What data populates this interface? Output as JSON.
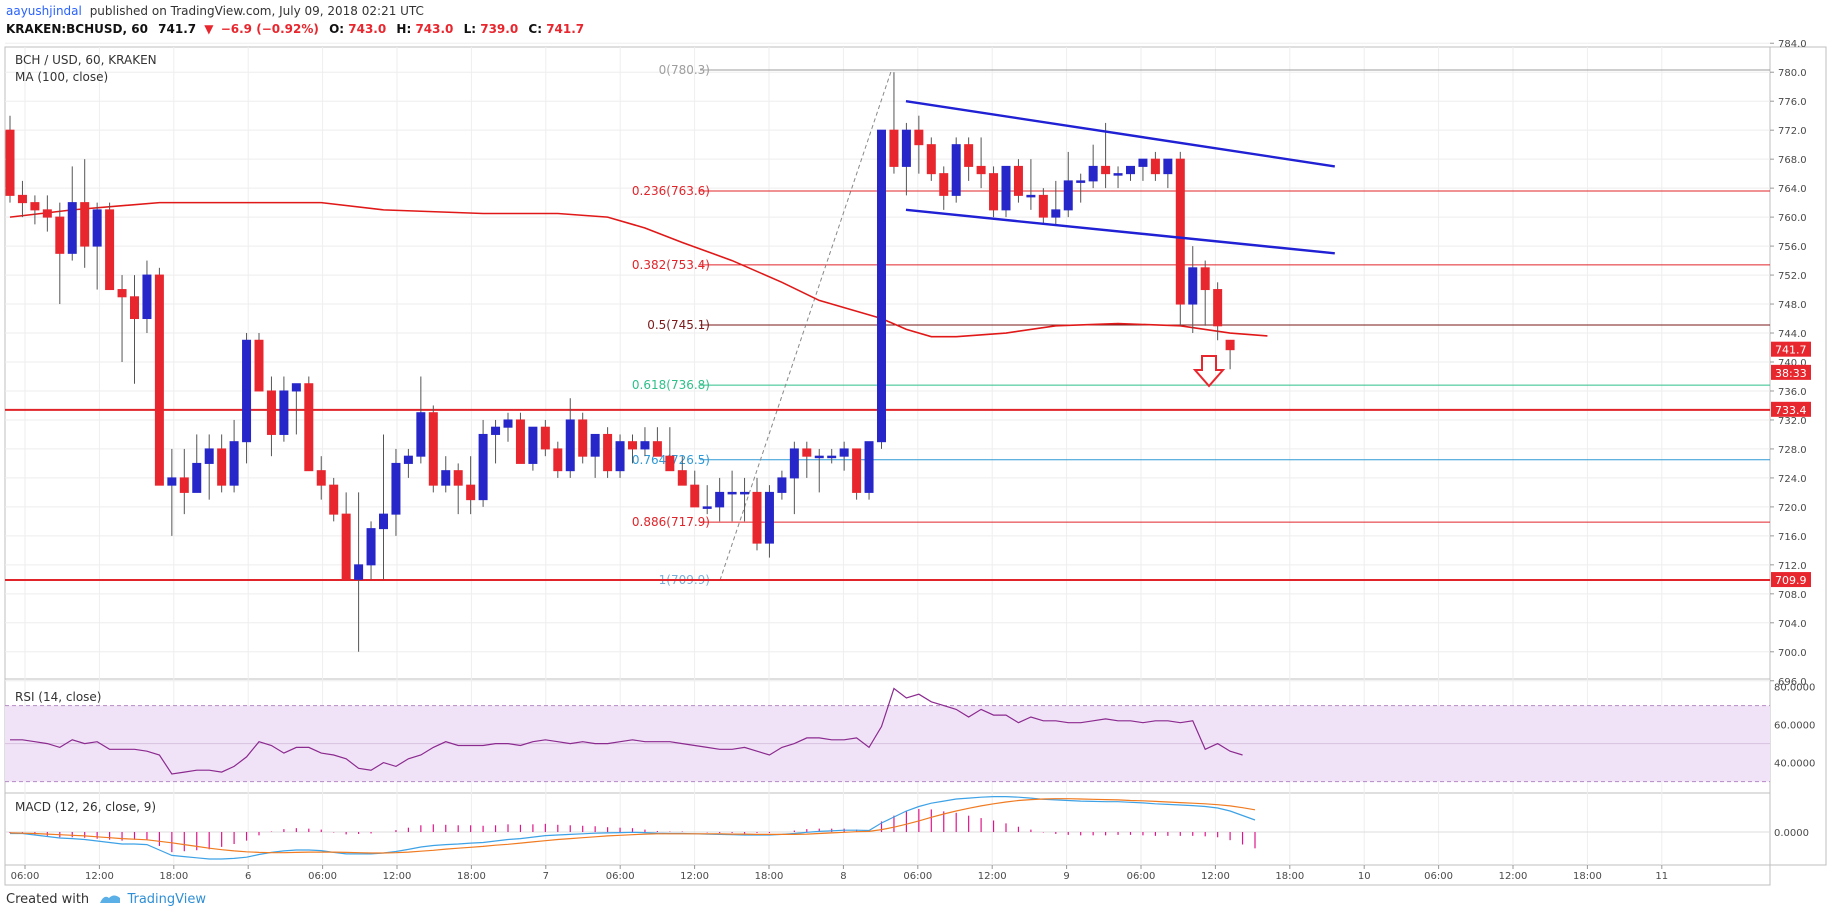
{
  "header": {
    "author": "aayushjindal",
    "published": "published on TradingView.com, July 09, 2018 02:21 UTC",
    "symbol": "KRAKEN:BCHUSD, 60",
    "last": "741.7",
    "change": "−6.9 (−0.92%)",
    "o_label": "O:",
    "o_value": "743.0",
    "h_label": "H:",
    "h_value": "743.0",
    "l_label": "L:",
    "l_value": "739.0",
    "c_label": "C:",
    "c_value": "741.7"
  },
  "legend": {
    "main": "BCH / USD, 60, KRAKEN",
    "ma": "MA (100, close)",
    "rsi": "RSI (14, close)",
    "macd": "MACD (12, 26, close, 9)"
  },
  "footer": {
    "created_with": "Created with",
    "brand": "TradingView"
  },
  "colors": {
    "up": "#2626c9",
    "down": "#e8262e",
    "ma": "#e01818",
    "trend": "#2020d4",
    "rsi_line": "#8b2a8f",
    "rsi_band": "#f1e3f7",
    "macd_line": "#3ea2e6",
    "signal_line": "#f07b22",
    "hist": "#e0148a"
  },
  "chart_data": {
    "type": "candlestick",
    "title": "BCH / USD, 60, KRAKEN",
    "y_ticks": [
      "784.0",
      "780.0",
      "776.0",
      "772.0",
      "768.0",
      "764.0",
      "760.0",
      "756.0",
      "752.0",
      "748.0",
      "744.0",
      "740.0",
      "736.0",
      "732.0",
      "728.0",
      "724.0",
      "720.0",
      "716.0",
      "712.0",
      "708.0",
      "704.0",
      "700.0",
      "696.0"
    ],
    "ylim": [
      695,
      785
    ],
    "x_ticks": [
      "06:00",
      "12:00",
      "18:00",
      "6",
      "06:00",
      "12:00",
      "18:00",
      "7",
      "06:00",
      "12:00",
      "18:00",
      "8",
      "06:00",
      "12:00",
      "9",
      "06:00",
      "12:00",
      "18:00",
      "10",
      "06:00",
      "12:00",
      "18:00",
      "11"
    ],
    "candles_ohlc": [
      [
        772,
        774,
        762,
        763
      ],
      [
        763,
        765,
        760,
        762
      ],
      [
        762,
        763,
        759,
        761
      ],
      [
        761,
        763,
        758,
        760
      ],
      [
        760,
        762,
        748,
        755
      ],
      [
        755,
        767,
        754,
        762
      ],
      [
        762,
        768,
        753,
        756
      ],
      [
        756,
        762,
        750,
        761
      ],
      [
        761,
        762,
        752,
        750
      ],
      [
        750,
        752,
        740,
        749
      ],
      [
        749,
        752,
        737,
        746
      ],
      [
        746,
        754,
        744,
        752
      ],
      [
        752,
        753,
        738,
        723
      ],
      [
        723,
        728,
        716,
        724
      ],
      [
        724,
        728,
        719,
        722
      ],
      [
        722,
        730,
        722,
        726
      ],
      [
        726,
        730,
        721,
        728
      ],
      [
        728,
        730,
        722,
        723
      ],
      [
        723,
        732,
        722,
        729
      ],
      [
        729,
        744,
        726,
        743
      ],
      [
        743,
        744,
        738,
        736
      ],
      [
        736,
        738,
        727,
        730
      ],
      [
        730,
        738,
        729,
        736
      ],
      [
        736,
        737,
        730,
        737
      ],
      [
        737,
        738,
        731,
        725
      ],
      [
        725,
        727,
        721,
        723
      ],
      [
        723,
        724,
        718,
        719
      ],
      [
        719,
        722,
        710,
        710
      ],
      [
        710,
        722,
        700,
        712
      ],
      [
        712,
        718,
        710,
        717
      ],
      [
        717,
        730,
        710,
        719
      ],
      [
        719,
        728,
        716,
        726
      ],
      [
        726,
        728,
        724,
        727
      ],
      [
        727,
        738,
        726,
        733
      ],
      [
        733,
        734,
        722,
        723
      ],
      [
        723,
        727,
        722,
        725
      ],
      [
        725,
        726,
        719,
        723
      ],
      [
        723,
        727,
        719,
        721
      ],
      [
        721,
        732,
        720,
        730
      ],
      [
        730,
        732,
        726,
        731
      ],
      [
        731,
        733,
        729,
        732
      ],
      [
        732,
        733,
        727,
        726
      ],
      [
        726,
        731,
        725,
        731
      ],
      [
        731,
        732,
        727,
        728
      ],
      [
        728,
        729,
        724,
        725
      ],
      [
        725,
        735,
        724,
        732
      ],
      [
        732,
        733,
        726,
        727
      ],
      [
        727,
        729,
        724,
        730
      ],
      [
        730,
        731,
        724,
        725
      ],
      [
        725,
        730,
        724,
        729
      ],
      [
        729,
        730,
        726,
        728
      ],
      [
        728,
        731,
        727,
        729
      ],
      [
        729,
        731,
        727,
        727
      ],
      [
        727,
        731,
        725,
        725
      ],
      [
        725,
        727,
        724,
        723
      ],
      [
        723,
        725,
        720,
        720
      ],
      [
        720,
        723,
        719,
        720
      ],
      [
        720,
        724,
        718,
        722
      ],
      [
        722,
        725,
        718,
        722
      ],
      [
        722,
        724,
        718,
        722
      ],
      [
        722,
        724,
        714,
        715
      ],
      [
        715,
        723,
        713,
        722
      ],
      [
        722,
        725,
        721,
        724
      ],
      [
        724,
        729,
        719,
        728
      ],
      [
        728,
        729,
        724,
        727
      ],
      [
        727,
        728,
        722,
        727
      ],
      [
        727,
        728,
        726,
        727
      ],
      [
        727,
        729,
        725,
        728
      ],
      [
        728,
        728,
        721,
        722
      ],
      [
        722,
        729,
        721,
        729
      ],
      [
        729,
        771,
        728,
        772
      ],
      [
        772,
        780,
        766,
        767
      ],
      [
        767,
        773,
        763,
        772
      ],
      [
        772,
        774,
        766,
        770
      ],
      [
        770,
        771,
        765,
        766
      ],
      [
        766,
        767,
        761,
        763
      ],
      [
        763,
        771,
        762,
        770
      ],
      [
        770,
        771,
        765,
        767
      ],
      [
        767,
        771,
        764,
        766
      ],
      [
        766,
        767,
        760,
        761
      ],
      [
        761,
        767,
        760,
        767
      ],
      [
        767,
        768,
        762,
        763
      ],
      [
        763,
        768,
        761,
        763
      ],
      [
        763,
        764,
        759,
        760
      ],
      [
        760,
        765,
        759,
        761
      ],
      [
        761,
        769,
        760,
        765
      ],
      [
        765,
        766,
        762,
        765
      ],
      [
        765,
        770,
        764,
        767
      ],
      [
        767,
        773,
        764,
        766
      ],
      [
        766,
        767,
        764,
        766
      ],
      [
        766,
        767,
        765,
        767
      ],
      [
        767,
        768,
        765,
        768
      ],
      [
        768,
        769,
        765,
        766
      ],
      [
        766,
        768,
        764,
        768
      ],
      [
        768,
        769,
        745,
        748
      ],
      [
        748,
        756,
        744,
        753
      ],
      [
        753,
        754,
        745,
        750
      ],
      [
        750,
        751,
        743,
        745
      ],
      [
        743,
        743,
        739,
        741.7
      ]
    ],
    "ma_100": [
      [
        0,
        760
      ],
      [
        5,
        761
      ],
      [
        12,
        762
      ],
      [
        20,
        762
      ],
      [
        25,
        762
      ],
      [
        30,
        761
      ],
      [
        38,
        760.5
      ],
      [
        44,
        760.5
      ],
      [
        48,
        760
      ],
      [
        51,
        758.5
      ],
      [
        54,
        756.5
      ],
      [
        58,
        754
      ],
      [
        62,
        751
      ],
      [
        65,
        748.5
      ],
      [
        68,
        747
      ],
      [
        70,
        746
      ],
      [
        72,
        744.5
      ],
      [
        74,
        743.5
      ],
      [
        76,
        743.5
      ],
      [
        80,
        744
      ],
      [
        84,
        745
      ],
      [
        89,
        745.3
      ],
      [
        94,
        745
      ],
      [
        98,
        744
      ],
      [
        101,
        743.6
      ]
    ],
    "fib_levels": [
      {
        "label": "0(780.3)",
        "value": 780.3,
        "color": "#9e9e9e"
      },
      {
        "label": "0.236(763.6)",
        "value": 763.6,
        "color": "#e0242a"
      },
      {
        "label": "0.382(753.4)",
        "value": 753.4,
        "color": "#e0242a"
      },
      {
        "label": "0.5(745.1)",
        "value": 745.1,
        "color": "#7a1a1a"
      },
      {
        "label": "0.618(736.8)",
        "value": 736.8,
        "color": "#2fbf8a"
      },
      {
        "label": "0.764(726.5)",
        "value": 726.5,
        "color": "#2f98d6"
      },
      {
        "label": "0.886(717.9)",
        "value": 717.9,
        "color": "#e0242a"
      },
      {
        "label": "1(709.9)",
        "value": 709.9,
        "color": "#78aed8"
      }
    ],
    "horizontal_levels": [
      {
        "value": 733.4,
        "label": "733.4"
      },
      {
        "value": 709.9,
        "label": "709.9"
      }
    ],
    "price_tags": [
      {
        "value": 741.7,
        "label": "741.7"
      },
      {
        "value": 738.5,
        "label": "38:33"
      }
    ],
    "trend_lines": [
      {
        "from": [
          71,
          776
        ],
        "to": [
          104,
          767
        ]
      },
      {
        "from": [
          71,
          761
        ],
        "to": [
          104,
          755
        ]
      }
    ],
    "rsi": {
      "ticks": [
        "80.0000",
        "60.0000",
        "40.0000"
      ],
      "ylim": [
        24,
        84
      ],
      "bands": [
        70,
        30
      ],
      "values": [
        52,
        52,
        51,
        50,
        48,
        52,
        50,
        51,
        47,
        47,
        47,
        46,
        44,
        34,
        35,
        36,
        36,
        35,
        38,
        43,
        51,
        49,
        45,
        48,
        48,
        45,
        44,
        42,
        37,
        36,
        40,
        38,
        42,
        44,
        48,
        51,
        49,
        49,
        49,
        50,
        50,
        49,
        51,
        52,
        51,
        50,
        51,
        50,
        50,
        51,
        52,
        51,
        51,
        51,
        50,
        49,
        48,
        47,
        47,
        48,
        46,
        44,
        48,
        50,
        53,
        53,
        52,
        52,
        53,
        48,
        59,
        79,
        74,
        76,
        72,
        70,
        68,
        64,
        68,
        65,
        65,
        61,
        64,
        62,
        62,
        61,
        61,
        62,
        63,
        62,
        62,
        61,
        62,
        62,
        61,
        62,
        47,
        50,
        46,
        44
      ]
    },
    "macd": {
      "ticks": [
        "0.0000"
      ],
      "ylim": [
        -11,
        13
      ],
      "macd_values": [
        -0.5,
        -0.5,
        -1,
        -1.5,
        -2,
        -2.2,
        -2.5,
        -3,
        -3.5,
        -4,
        -4,
        -4.2,
        -6,
        -7.8,
        -8.2,
        -8.6,
        -9,
        -9,
        -8.8,
        -8.4,
        -7.5,
        -6.8,
        -6.3,
        -6,
        -6,
        -6.2,
        -6.8,
        -7.3,
        -7.3,
        -7.3,
        -7,
        -6.5,
        -5.8,
        -5,
        -4.5,
        -4.2,
        -4,
        -3.7,
        -3.5,
        -3,
        -2.5,
        -2.2,
        -1.7,
        -1.2,
        -1,
        -0.8,
        -0.6,
        -0.4,
        -0.3,
        -0.2,
        -0.1,
        -0.2,
        -0.4,
        -0.5,
        -0.5,
        -0.6,
        -0.7,
        -0.8,
        -0.9,
        -1,
        -1,
        -1,
        -0.8,
        -0.5,
        -0.1,
        0.2,
        0.4,
        0.6,
        0.6,
        0.5,
        3,
        5,
        7,
        8.5,
        9.6,
        10.3,
        11,
        11.3,
        11.6,
        11.8,
        11.8,
        11.6,
        11.3,
        10.9,
        10.7,
        10.5,
        10.3,
        10.2,
        10.1,
        10.1,
        9.9,
        9.7,
        9.4,
        9.2,
        9,
        8.8,
        8.5,
        8,
        7,
        5.5,
        4
      ],
      "signal_values": [
        -0.3,
        -0.4,
        -0.5,
        -0.7,
        -0.9,
        -1.1,
        -1.3,
        -1.6,
        -1.9,
        -2.2,
        -2.4,
        -2.6,
        -3.1,
        -3.6,
        -4.2,
        -4.8,
        -5.4,
        -5.9,
        -6.3,
        -6.6,
        -6.8,
        -6.9,
        -6.9,
        -6.8,
        -6.7,
        -6.7,
        -6.7,
        -6.8,
        -6.9,
        -7,
        -7,
        -6.9,
        -6.7,
        -6.4,
        -6.1,
        -5.7,
        -5.4,
        -5.1,
        -4.8,
        -4.4,
        -4.1,
        -3.7,
        -3.3,
        -2.9,
        -2.5,
        -2.2,
        -1.9,
        -1.6,
        -1.3,
        -1.1,
        -0.9,
        -0.7,
        -0.6,
        -0.6,
        -0.6,
        -0.6,
        -0.6,
        -0.6,
        -0.7,
        -0.7,
        -0.8,
        -0.8,
        -0.8,
        -0.8,
        -0.7,
        -0.5,
        -0.3,
        -0.1,
        0.1,
        0.2,
        0.8,
        1.6,
        2.6,
        3.7,
        4.9,
        6,
        7,
        7.9,
        8.7,
        9.4,
        10,
        10.5,
        10.8,
        11,
        11.1,
        11.1,
        11,
        10.9,
        10.8,
        10.7,
        10.5,
        10.4,
        10.2,
        10,
        9.8,
        9.6,
        9.4,
        9.1,
        8.7,
        8.1,
        7.4
      ]
    }
  }
}
